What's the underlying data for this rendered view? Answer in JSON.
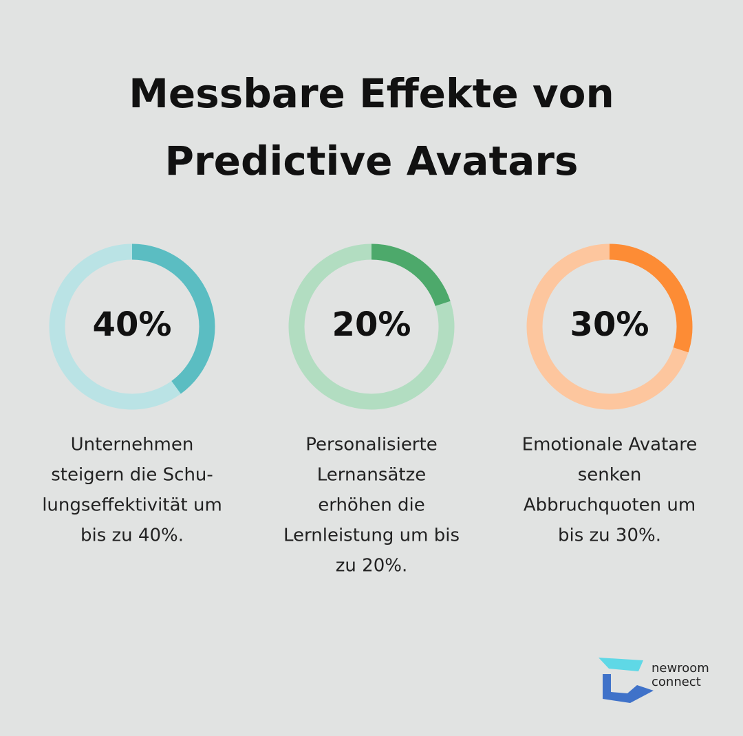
{
  "title": [
    "Messbare Effekte von",
    "Predictive Avatars"
  ],
  "chart_data": [
    {
      "type": "donut",
      "values": [
        40
      ],
      "value_labels": [
        "40%"
      ],
      "ylim": [
        0,
        100
      ],
      "color": "#5bbdc2",
      "track_color": "#bae3e5",
      "caption": [
        "Unternehmen",
        "steigern die Schu-",
        "lungseffektivität um",
        "bis zu 40%."
      ]
    },
    {
      "type": "donut",
      "values": [
        20
      ],
      "value_labels": [
        "20%"
      ],
      "ylim": [
        0,
        100
      ],
      "color": "#4da96b",
      "track_color": "#b2ddc1",
      "caption": [
        "Personalisierte",
        "Lernansätze",
        "erhöhen die",
        "Lernleistung um bis",
        "zu 20%."
      ]
    },
    {
      "type": "donut",
      "values": [
        30
      ],
      "value_labels": [
        "30%"
      ],
      "ylim": [
        0,
        100
      ],
      "color": "#fd8c35",
      "track_color": "#fdc69e",
      "caption": [
        "Emotionale Avatare",
        "senken",
        "Abbruchquoten um",
        "bis zu 30%."
      ]
    }
  ],
  "logo": [
    "newroom",
    "connect"
  ]
}
